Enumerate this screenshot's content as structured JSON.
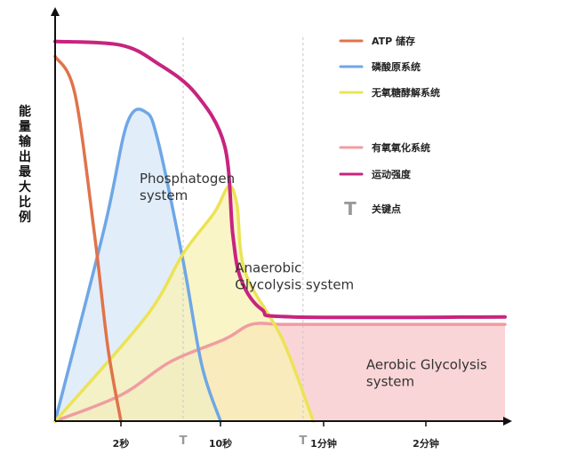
{
  "chart_data": {
    "type": "area",
    "ylabel": "能量输出最大比例",
    "xlabel": "",
    "x_ticks": [
      {
        "label": "2秒",
        "t": 2
      },
      {
        "label": "10秒",
        "t": 10
      },
      {
        "label": "1分钟",
        "t": 60
      },
      {
        "label": "2分钟",
        "t": 120
      }
    ],
    "key_point_marks": [
      {
        "label": "T",
        "t": 7
      },
      {
        "label": "T",
        "t": 50
      }
    ],
    "ylim": [
      0,
      1
    ],
    "series": [
      {
        "name": "ATP 储存",
        "color": "#e0734a",
        "fill": false,
        "points": [
          [
            0,
            0.98
          ],
          [
            0.6,
            0.88
          ],
          [
            1.2,
            0.5
          ],
          [
            1.6,
            0.2
          ],
          [
            2,
            0
          ]
        ]
      },
      {
        "name": "磷酸原系统",
        "color": "#6ea7e6",
        "fill": "#d8e7f8",
        "points": [
          [
            0,
            0
          ],
          [
            1.5,
            0.52
          ],
          [
            2.5,
            0.8
          ],
          [
            4,
            0.83
          ],
          [
            5,
            0.75
          ],
          [
            7,
            0.43
          ],
          [
            8.5,
            0.15
          ],
          [
            10,
            0
          ]
        ]
      },
      {
        "name": "无氧糖酵解系统",
        "color": "#ebe356",
        "fill": "#f8f2b3",
        "points": [
          [
            0,
            0
          ],
          [
            4,
            0.28
          ],
          [
            7,
            0.45
          ],
          [
            9.5,
            0.56
          ],
          [
            14,
            0.63
          ],
          [
            18,
            0.58
          ],
          [
            22,
            0.4
          ],
          [
            40,
            0.22
          ],
          [
            55,
            0
          ]
        ]
      },
      {
        "name": "有氧氧化系统",
        "color": "#f09ca2",
        "fill": "#f8c7ca",
        "points": [
          [
            0,
            0
          ],
          [
            2,
            0.07
          ],
          [
            6,
            0.16
          ],
          [
            12,
            0.22
          ],
          [
            25,
            0.26
          ],
          [
            40,
            0.26
          ],
          [
            70,
            0.26
          ],
          [
            150,
            0.26
          ]
        ]
      },
      {
        "name": "运动强度",
        "color": "#c7247f",
        "fill": false,
        "points": [
          [
            0,
            1.02
          ],
          [
            2,
            1.01
          ],
          [
            5,
            0.96
          ],
          [
            8,
            0.88
          ],
          [
            12,
            0.74
          ],
          [
            16,
            0.5
          ],
          [
            20,
            0.38
          ],
          [
            30,
            0.3
          ],
          [
            45,
            0.28
          ],
          [
            150,
            0.28
          ]
        ]
      }
    ],
    "annotations": [
      {
        "text": "Phosphatogen\nsystem",
        "t": 3.5,
        "y": 0.64
      },
      {
        "text": "Anaerobic\nGlycolysis system",
        "t": 17,
        "y": 0.4
      },
      {
        "text": "Aerobic Glycolysis\nsystem",
        "t": 85,
        "y": 0.14
      }
    ],
    "legend": {
      "position": "top-right",
      "entries": [
        {
          "label": "ATP 储存",
          "color": "#e0734a",
          "kind": "line"
        },
        {
          "label": "磷酸原系统",
          "color": "#6ea7e6",
          "kind": "line"
        },
        {
          "label": "无氧糖酵解系统",
          "color": "#ebe356",
          "kind": "line"
        },
        {
          "label": "有氧氧化系统",
          "color": "#f09ca2",
          "kind": "line"
        },
        {
          "label": "运动强度",
          "color": "#c7247f",
          "kind": "line"
        },
        {
          "label": "关键点",
          "color": "#9a9a9a",
          "kind": "T"
        }
      ]
    },
    "grid": false
  }
}
